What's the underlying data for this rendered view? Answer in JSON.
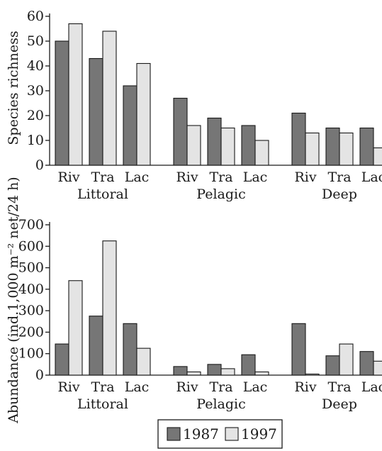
{
  "colors": {
    "s1987": "#767676",
    "s1997": "#e4e4e4"
  },
  "legend": {
    "items": [
      {
        "label": "1987",
        "color": "#767676"
      },
      {
        "label": "1997",
        "color": "#e4e4e4"
      }
    ]
  },
  "chart_data": [
    {
      "type": "bar",
      "ylabel": "Species richness",
      "ylim": [
        0,
        60
      ],
      "yticks": [
        0,
        10,
        20,
        30,
        40,
        50,
        60
      ],
      "categories": [
        "Riv",
        "Tra",
        "Lac",
        "Riv",
        "Tra",
        "Lac",
        "Riv",
        "Tra",
        "Lac"
      ],
      "groups": [
        "Littoral",
        "Pelagic",
        "Deep"
      ],
      "series": [
        {
          "name": "1987",
          "values": [
            50,
            43,
            32,
            27,
            19,
            16,
            21,
            15,
            15
          ]
        },
        {
          "name": "1997",
          "values": [
            57,
            54,
            41,
            16,
            15,
            10,
            13,
            13,
            7
          ]
        }
      ]
    },
    {
      "type": "bar",
      "ylabel": "Abundance (ind.1,000 m⁻² net/24 h)",
      "ylim": [
        0,
        700
      ],
      "yticks": [
        0,
        100,
        200,
        300,
        400,
        500,
        600,
        700
      ],
      "categories": [
        "Riv",
        "Tra",
        "Lac",
        "Riv",
        "Tra",
        "Lac",
        "Riv",
        "Tra",
        "Lac"
      ],
      "groups": [
        "Littoral",
        "Pelagic",
        "Deep"
      ],
      "series": [
        {
          "name": "1987",
          "values": [
            145,
            275,
            240,
            40,
            50,
            95,
            240,
            90,
            110
          ]
        },
        {
          "name": "1997",
          "values": [
            440,
            625,
            125,
            15,
            30,
            15,
            5,
            145,
            65
          ]
        }
      ]
    }
  ]
}
